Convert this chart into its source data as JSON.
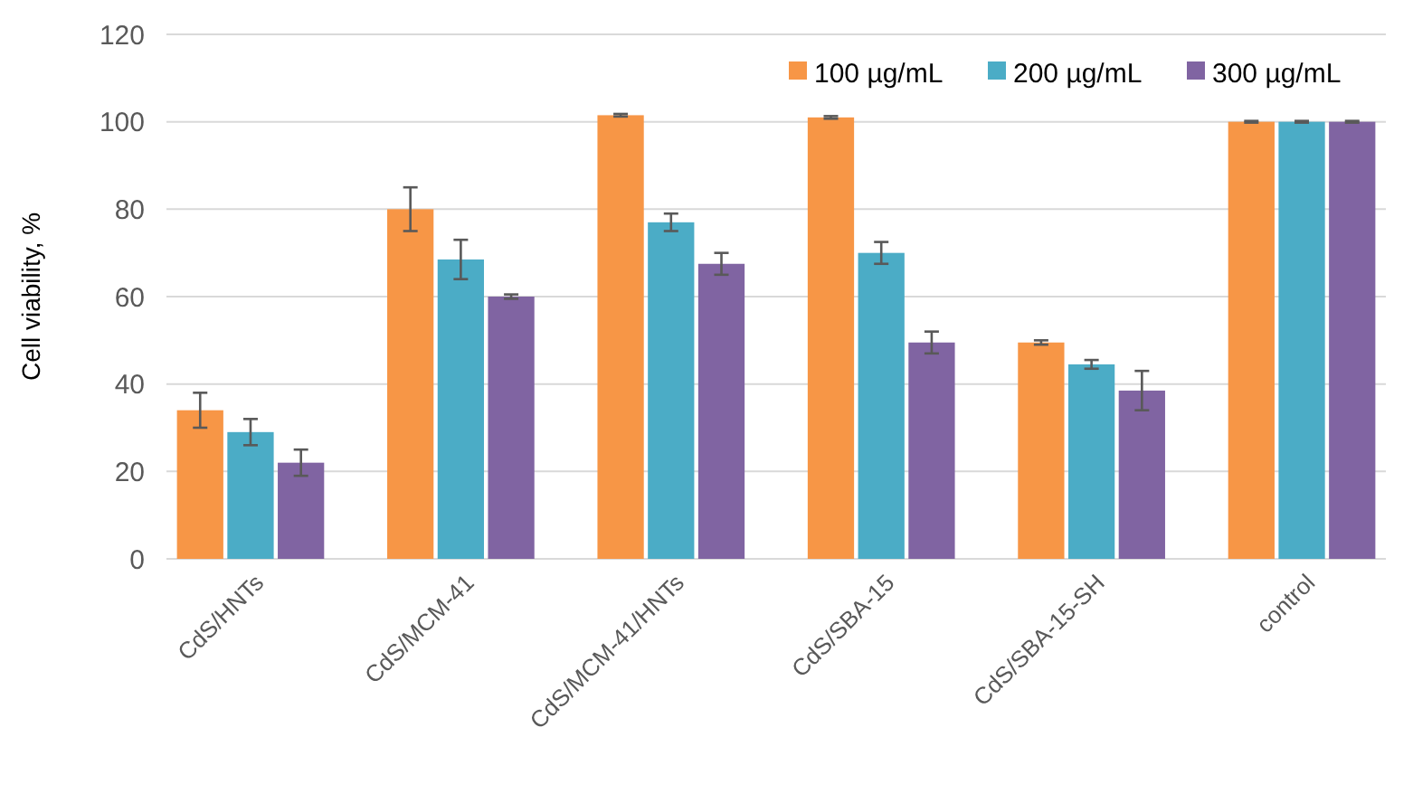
{
  "chart_data": {
    "type": "bar",
    "ylabel": "Cell viability, %",
    "categories": [
      "CdS/HNTs",
      "CdS/MCM-41",
      "CdS/MCM-41/HNTs",
      "CdS/SBA-15",
      "CdS/SBA-15-SH",
      "control"
    ],
    "series": [
      {
        "name": "100 µg/mL",
        "color": "#f79646",
        "values": [
          34,
          80,
          101.5,
          101,
          49.5,
          100
        ],
        "errors": [
          4,
          5,
          0.3,
          0.3,
          0.5,
          0.2
        ]
      },
      {
        "name": "200 µg/mL",
        "color": "#4bacc6",
        "values": [
          29,
          68.5,
          77,
          70,
          44.5,
          100
        ],
        "errors": [
          3,
          4.5,
          2,
          2.5,
          1,
          0.2
        ]
      },
      {
        "name": "300 µg/mL",
        "color": "#8064a2",
        "values": [
          22,
          60,
          67.5,
          49.5,
          38.5,
          100
        ],
        "errors": [
          3,
          0.5,
          2.5,
          2.5,
          4.5,
          0.2
        ]
      }
    ],
    "ylim": [
      0,
      120
    ],
    "yticks": [
      0,
      20,
      40,
      60,
      80,
      100,
      120
    ],
    "grid": "y",
    "legend": "top right"
  }
}
